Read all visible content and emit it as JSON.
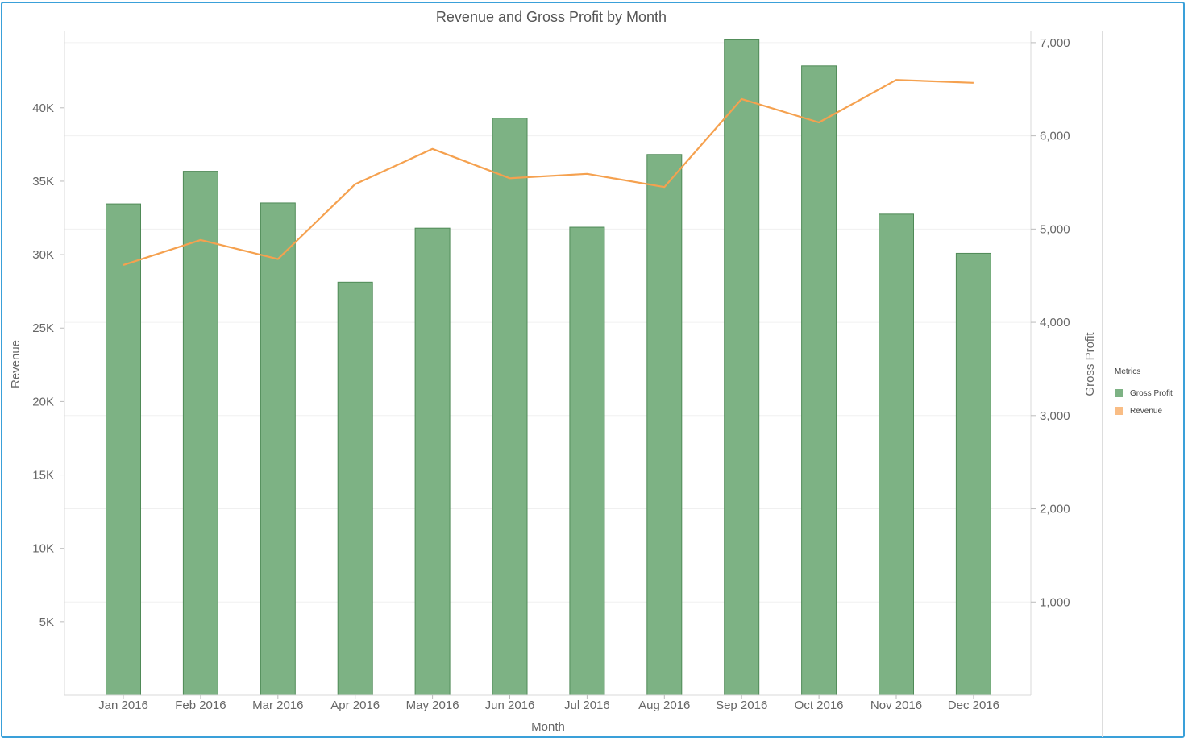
{
  "chart_data": {
    "type": "bar",
    "title": "Revenue and Gross Profit by Month",
    "xlabel": "Month",
    "ylabel_left": "Revenue",
    "ylabel_right": "Gross Profit",
    "categories": [
      "Jan 2016",
      "Feb 2016",
      "Mar 2016",
      "Apr 2016",
      "May 2016",
      "Jun 2016",
      "Jul 2016",
      "Aug 2016",
      "Sep 2016",
      "Oct 2016",
      "Nov 2016",
      "Dec 2016"
    ],
    "series": [
      {
        "name": "Gross Profit",
        "type": "bar",
        "axis": "right",
        "color": "#7db284",
        "stroke": "#4f8a57",
        "values": [
          5270,
          5620,
          5280,
          4430,
          5010,
          6190,
          5020,
          5800,
          7030,
          6750,
          5160,
          4740
        ]
      },
      {
        "name": "Revenue",
        "type": "line",
        "axis": "left",
        "color": "#f5a14f",
        "values": [
          29300,
          31000,
          29700,
          34800,
          37200,
          35200,
          35500,
          34600,
          40600,
          39000,
          41900,
          41700
        ]
      }
    ],
    "y_left": {
      "min": 0,
      "max": 45200,
      "ticks": [
        5000,
        10000,
        15000,
        20000,
        25000,
        30000,
        35000,
        40000
      ],
      "tick_labels": [
        "5K",
        "10K",
        "15K",
        "20K",
        "25K",
        "30K",
        "35K",
        "40K"
      ]
    },
    "y_right": {
      "min": 0,
      "max": 7120,
      "ticks": [
        1000,
        2000,
        3000,
        4000,
        5000,
        6000,
        7000
      ],
      "tick_labels": [
        "1,000",
        "2,000",
        "3,000",
        "4,000",
        "5,000",
        "6,000",
        "7,000"
      ]
    },
    "grid": true,
    "legend": {
      "title": "Metrics",
      "position": "right"
    }
  }
}
